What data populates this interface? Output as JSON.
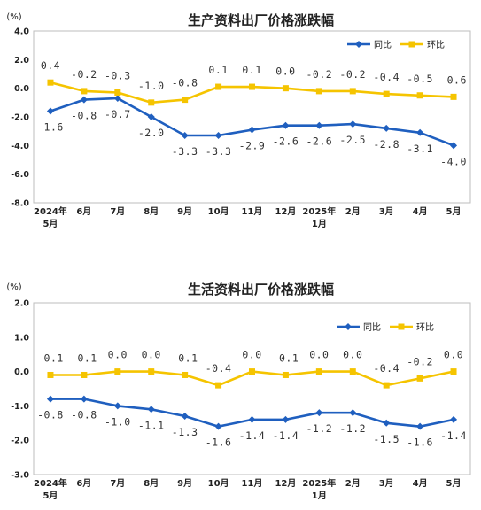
{
  "chart_data": [
    {
      "type": "line",
      "title": "生产资料出厂价格涨跌幅",
      "unit": "(%)",
      "categories": [
        [
          "2024年",
          "5月"
        ],
        [
          "6月"
        ],
        [
          "7月"
        ],
        [
          "8月"
        ],
        [
          "9月"
        ],
        [
          "10月"
        ],
        [
          "11月"
        ],
        [
          "12月"
        ],
        [
          "2025年",
          "1月"
        ],
        [
          "2月"
        ],
        [
          "3月"
        ],
        [
          "4月"
        ],
        [
          "5月"
        ]
      ],
      "ylim": [
        -8.0,
        4.0
      ],
      "yticks": [
        "4.0",
        "2.0",
        "0.0",
        "-2.0",
        "-4.0",
        "-6.0",
        "-8.0"
      ],
      "ytick_values": [
        4,
        2,
        0,
        -2,
        -4,
        -6,
        -8
      ],
      "grid": false,
      "legend_position": "top-right",
      "series": [
        {
          "name": "同比",
          "color": "#1f5fbf",
          "marker": "diamond",
          "values": [
            -1.6,
            -0.8,
            -0.7,
            -2.0,
            -3.3,
            -3.3,
            -2.9,
            -2.6,
            -2.6,
            -2.5,
            -2.8,
            -3.1,
            -4.0
          ],
          "labels": [
            "-1.6",
            "-0.8",
            "-0.7",
            "-2.0",
            "-3.3",
            "-3.3",
            "-2.9",
            "-2.6",
            "-2.6",
            "-2.5",
            "-2.8",
            "-3.1",
            "-4.0"
          ]
        },
        {
          "name": "环比",
          "color": "#f5c400",
          "marker": "square",
          "values": [
            0.4,
            -0.2,
            -0.3,
            -1.0,
            -0.8,
            0.1,
            0.1,
            0.0,
            -0.2,
            -0.2,
            -0.4,
            -0.5,
            -0.6
          ],
          "labels": [
            "0.4",
            "-0.2",
            "-0.3",
            "-1.0",
            "-0.8",
            "0.1",
            "0.1",
            "0.0",
            "-0.2",
            "-0.2",
            "-0.4",
            "-0.5",
            "-0.6"
          ]
        }
      ]
    },
    {
      "type": "line",
      "title": "生活资料出厂价格涨跌幅",
      "unit": "(%)",
      "categories": [
        [
          "2024年",
          "5月"
        ],
        [
          "6月"
        ],
        [
          "7月"
        ],
        [
          "8月"
        ],
        [
          "9月"
        ],
        [
          "10月"
        ],
        [
          "11月"
        ],
        [
          "12月"
        ],
        [
          "2025年",
          "1月"
        ],
        [
          "2月"
        ],
        [
          "3月"
        ],
        [
          "4月"
        ],
        [
          "5月"
        ]
      ],
      "ylim": [
        -3.0,
        2.0
      ],
      "yticks": [
        "2.0",
        "1.0",
        "0.0",
        "-1.0",
        "-2.0",
        "-3.0"
      ],
      "ytick_values": [
        2,
        1,
        0,
        -1,
        -2,
        -3
      ],
      "grid": false,
      "legend_position": "top-right",
      "series": [
        {
          "name": "同比",
          "color": "#1f5fbf",
          "marker": "diamond",
          "values": [
            -0.8,
            -0.8,
            -1.0,
            -1.1,
            -1.3,
            -1.6,
            -1.4,
            -1.4,
            -1.2,
            -1.2,
            -1.5,
            -1.6,
            -1.4
          ],
          "labels": [
            "-0.8",
            "-0.8",
            "-1.0",
            "-1.1",
            "-1.3",
            "-1.6",
            "-1.4",
            "-1.4",
            "-1.2",
            "-1.2",
            "-1.5",
            "-1.6",
            "-1.4"
          ]
        },
        {
          "name": "环比",
          "color": "#f5c400",
          "marker": "square",
          "values": [
            -0.1,
            -0.1,
            0.0,
            0.0,
            -0.1,
            -0.4,
            0.0,
            -0.1,
            0.0,
            0.0,
            -0.4,
            -0.2,
            0.0
          ],
          "labels": [
            "-0.1",
            "-0.1",
            "0.0",
            "0.0",
            "-0.1",
            "-0.4",
            "0.0",
            "-0.1",
            "0.0",
            "0.0",
            "-0.4",
            "-0.2",
            "0.0"
          ]
        }
      ]
    }
  ]
}
